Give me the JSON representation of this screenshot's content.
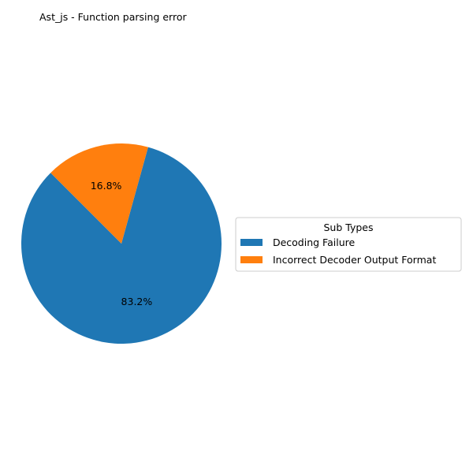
{
  "chart_data": {
    "type": "pie",
    "title": "Ast_js - Function parsing error",
    "categories": [
      " Decoding Failure",
      " Incorrect Decoder Output Format"
    ],
    "values": [
      83.2,
      16.8
    ],
    "labels": [
      "83.2%",
      "16.8%"
    ],
    "colors": [
      "#1f77b4",
      "#ff7f0e"
    ],
    "legend": {
      "title": "Sub Types",
      "placement": "center-right",
      "entries": [
        " Decoding Failure",
        " Incorrect Decoder Output Format"
      ]
    }
  }
}
